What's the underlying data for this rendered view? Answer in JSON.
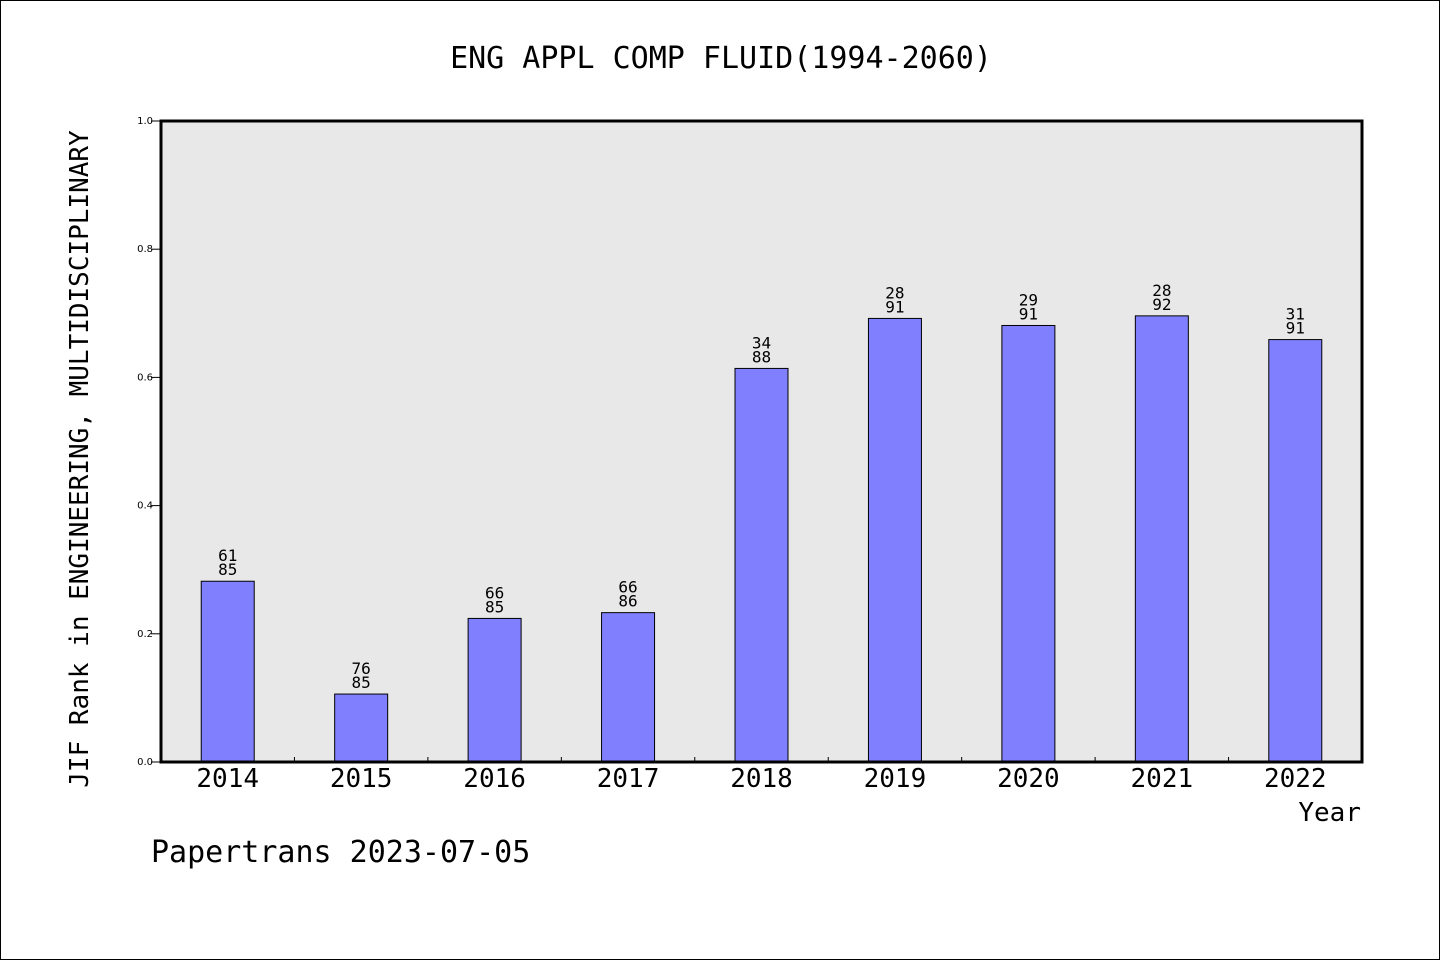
{
  "footer": "Papertrans 2023-07-05",
  "chart_data": {
    "type": "bar",
    "title": "ENG APPL COMP FLUID(1994-2060)",
    "xlabel": "Year",
    "ylabel": "JIF Rank in ENGINEERING, MULTIDISCIPLINARY",
    "ylim": [
      0,
      1.0
    ],
    "y_ticks": [
      "0.0",
      "0.2",
      "0.4",
      "0.6",
      "0.8",
      "1.0"
    ],
    "grid": false,
    "bar_color": "#8080ff",
    "plot_background": "#e8e8e8",
    "categories": [
      "2014",
      "2015",
      "2016",
      "2017",
      "2018",
      "2019",
      "2020",
      "2021",
      "2022"
    ],
    "values": [
      0.282,
      0.106,
      0.224,
      0.233,
      0.614,
      0.692,
      0.681,
      0.696,
      0.659
    ],
    "rank_labels": [
      {
        "rank": "61",
        "total": "85"
      },
      {
        "rank": "76",
        "total": "85"
      },
      {
        "rank": "66",
        "total": "85"
      },
      {
        "rank": "66",
        "total": "86"
      },
      {
        "rank": "34",
        "total": "88"
      },
      {
        "rank": "28",
        "total": "91"
      },
      {
        "rank": "29",
        "total": "91"
      },
      {
        "rank": "28",
        "total": "92"
      },
      {
        "rank": "31",
        "total": "91"
      }
    ]
  }
}
